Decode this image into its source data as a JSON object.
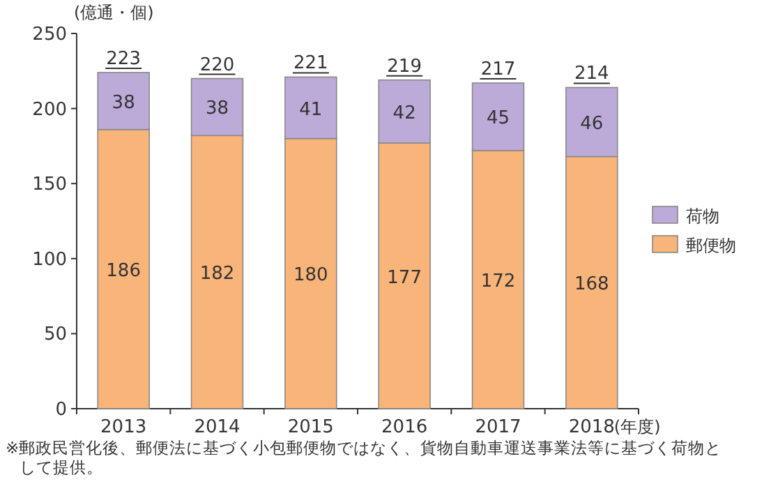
{
  "chart_data": {
    "type": "bar",
    "stacked": true,
    "ylabel": "(億通・個)",
    "xlabel": "(年度)",
    "categories": [
      "2013",
      "2014",
      "2015",
      "2016",
      "2017",
      "2018"
    ],
    "series": [
      {
        "name": "郵便物",
        "color": "#f9b47a",
        "values": [
          186,
          182,
          180,
          177,
          172,
          168
        ]
      },
      {
        "name": "荷物",
        "color": "#bcaad8",
        "values": [
          38,
          38,
          41,
          42,
          45,
          46
        ]
      }
    ],
    "totals": [
      "223",
      "220",
      "221",
      "219",
      "217",
      "214"
    ],
    "data_labels": true,
    "ylim": [
      0,
      250
    ],
    "yticks": [
      0,
      50,
      100,
      150,
      200,
      250
    ],
    "legend": "right",
    "annotations": [
      "※郵政民営化後、郵便法に基づく小包郵便物ではなく、貨物自動車運送事業法等に基づく荷物として提供。"
    ]
  }
}
